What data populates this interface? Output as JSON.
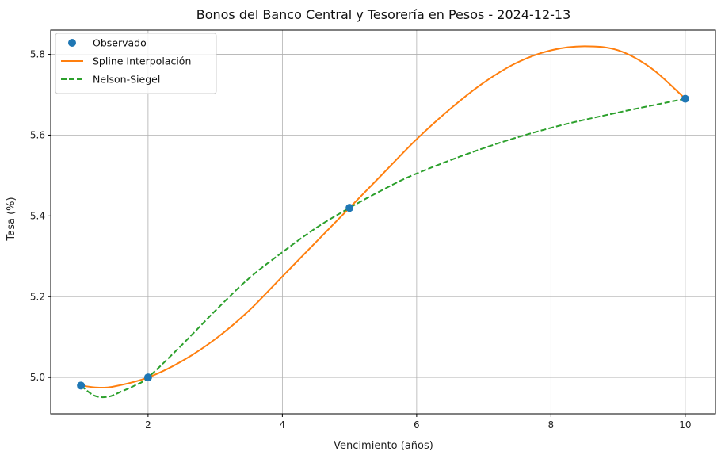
{
  "chart_data": {
    "type": "line",
    "title": "Bonos del Banco Central y Tesorería en Pesos - 2024-12-13",
    "xlabel": "Vencimiento (años)",
    "ylabel": "Tasa (%)",
    "xlim": [
      0.55,
      10.45
    ],
    "ylim": [
      4.91,
      5.86
    ],
    "xticks": [
      2,
      4,
      6,
      8,
      10
    ],
    "yticks": [
      5.0,
      5.2,
      5.4,
      5.6,
      5.8
    ],
    "xtick_labels": [
      "2",
      "4",
      "6",
      "8",
      "10"
    ],
    "ytick_labels": [
      "5.0",
      "5.2",
      "5.4",
      "5.6",
      "5.8"
    ],
    "grid": true,
    "legend_position": "top-left",
    "series": [
      {
        "name": "Observado",
        "kind": "scatter",
        "color": "#1f77b4",
        "x": [
          1,
          2,
          5,
          10
        ],
        "y": [
          4.98,
          5.0,
          5.42,
          5.69
        ]
      },
      {
        "name": "Spline Interpolación",
        "kind": "line",
        "style": "solid",
        "color": "#ff7f0e",
        "x": [
          1.0,
          1.25,
          1.5,
          2.0,
          2.5,
          3.0,
          3.5,
          4.0,
          4.5,
          5.0,
          5.5,
          6.0,
          6.5,
          7.0,
          7.5,
          8.0,
          8.5,
          9.0,
          9.5,
          10.0
        ],
        "y": [
          4.98,
          4.975,
          4.978,
          5.0,
          5.04,
          5.095,
          5.165,
          5.25,
          5.335,
          5.42,
          5.505,
          5.59,
          5.665,
          5.73,
          5.78,
          5.81,
          5.82,
          5.81,
          5.765,
          5.69
        ]
      },
      {
        "name": "Nelson-Siegel",
        "kind": "line",
        "style": "dashed",
        "color": "#2ca02c",
        "x": [
          1.0,
          1.2,
          1.4,
          1.6,
          1.8,
          2.0,
          2.5,
          3.0,
          3.5,
          4.0,
          4.5,
          5.0,
          5.5,
          6.0,
          7.0,
          8.0,
          9.0,
          10.0
        ],
        "y": [
          4.98,
          4.955,
          4.952,
          4.965,
          4.98,
          5.0,
          5.08,
          5.165,
          5.245,
          5.31,
          5.37,
          5.42,
          5.465,
          5.505,
          5.568,
          5.618,
          5.656,
          5.69
        ]
      }
    ]
  }
}
